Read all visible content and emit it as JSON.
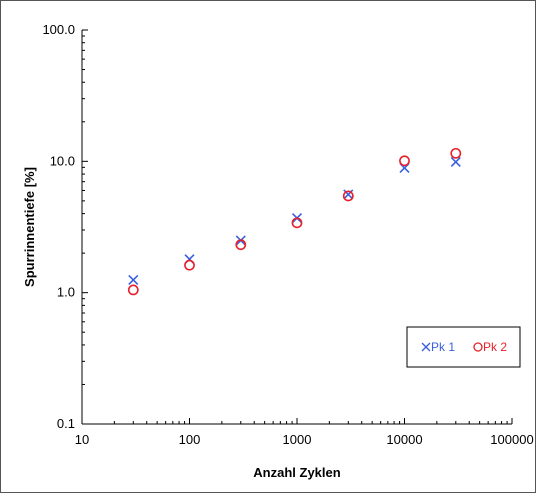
{
  "chart_data": {
    "type": "scatter",
    "xlabel": "Anzahl Zyklen",
    "ylabel": "Spurrinnentiefe [%]",
    "x_scale": "log",
    "y_scale": "log",
    "xlim": [
      10,
      100000
    ],
    "ylim": [
      0.1,
      100
    ],
    "x_ticks": [
      "10",
      "100",
      "1000",
      "10000",
      "100000"
    ],
    "y_ticks": [
      "0.1",
      "1.0",
      "10.0",
      "100.0"
    ],
    "grid": false,
    "legend_position": "bottom-right",
    "series": [
      {
        "name": "Pk 1",
        "marker": "x",
        "color": "#3a5fe0",
        "x": [
          30,
          100,
          300,
          1000,
          3000,
          10000,
          30000
        ],
        "y": [
          1.25,
          1.8,
          2.5,
          3.7,
          5.6,
          8.9,
          9.9
        ]
      },
      {
        "name": "Pk 2",
        "marker": "circle",
        "color": "#e8202a",
        "x": [
          30,
          100,
          300,
          1000,
          3000,
          10000,
          30000
        ],
        "y": [
          1.05,
          1.62,
          2.32,
          3.4,
          5.45,
          10.1,
          11.5
        ]
      }
    ]
  }
}
